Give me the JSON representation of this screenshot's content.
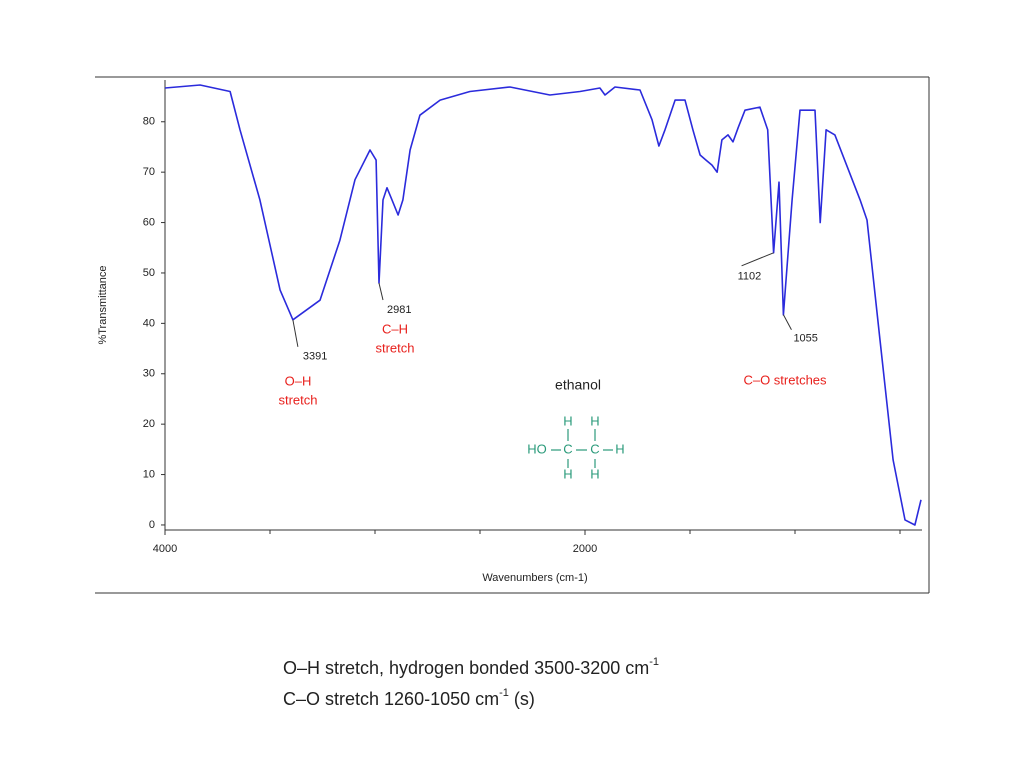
{
  "chart_data": {
    "type": "line",
    "x_label": "Wavenumbers (cm-1)",
    "y_label": "%Transmittance",
    "xlim": [
      4000,
      400
    ],
    "ylim": [
      -1,
      89
    ],
    "xticks": [
      4000,
      2000
    ],
    "xminorticks": [
      3500,
      3000,
      2500,
      1500,
      1000,
      500
    ],
    "yticks": [
      0,
      10,
      20,
      30,
      40,
      50,
      60,
      70,
      80
    ],
    "series": [
      {
        "color": "#2b2bdc",
        "x": [
          4000,
          3833,
          3690,
          3643,
          3548,
          3452,
          3391,
          3262,
          3167,
          3095,
          3024,
          2995,
          2981,
          2962,
          2943,
          2919,
          2890,
          2867,
          2833,
          2786,
          2690,
          2548,
          2357,
          2167,
          2024,
          1929,
          1905,
          1857,
          1738,
          1681,
          1648,
          1619,
          1571,
          1524,
          1486,
          1452,
          1424,
          1395,
          1371,
          1348,
          1319,
          1295,
          1271,
          1238,
          1167,
          1130,
          1102,
          1076,
          1055,
          1014,
          976,
          905,
          880,
          852,
          810,
          690,
          657,
          595,
          533,
          476,
          429,
          400
        ],
        "values": [
          86.7,
          87.3,
          86,
          78.4,
          64.5,
          46.6,
          40.7,
          44.6,
          56.5,
          68.5,
          74.4,
          72.4,
          48,
          64.5,
          66.9,
          64.5,
          61.5,
          64.5,
          74.4,
          81.3,
          84.3,
          86,
          86.9,
          85.3,
          86,
          86.7,
          85.3,
          86.9,
          86.3,
          80.4,
          75.2,
          78.4,
          84.3,
          84.3,
          78.4,
          73.4,
          72.4,
          71.4,
          70,
          76.4,
          77.4,
          76,
          78.8,
          82.3,
          82.9,
          78.4,
          54,
          68,
          41.7,
          64.5,
          82.3,
          82.3,
          60,
          78.4,
          77.4,
          64.5,
          60.5,
          36.7,
          12.9,
          1,
          0,
          5
        ]
      }
    ],
    "peak_labels": [
      {
        "label": "3391",
        "x": 3391,
        "y": 40.7
      },
      {
        "label": "2981",
        "x": 2981,
        "y": 48
      },
      {
        "label": "1102",
        "x": 1102,
        "y": 54
      },
      {
        "label": "1055",
        "x": 1055,
        "y": 41.7
      }
    ],
    "band_labels": [
      {
        "lines": [
          "O–H",
          "stretch"
        ]
      },
      {
        "lines": [
          "C–H",
          "stretch"
        ]
      },
      {
        "lines": [
          "C–O stretches"
        ]
      }
    ],
    "compound": "ethanol",
    "atoms": [
      "H",
      "H",
      "HO",
      "C",
      "C",
      "H",
      "H",
      "H"
    ]
  },
  "caption": [
    {
      "text": "O–H stretch, hydrogen bonded 3500-3200 cm",
      "sup": "-1",
      "after": ""
    },
    {
      "text": "C–O stretch 1260-1050 cm",
      "sup": "-1",
      "after": " (s)"
    }
  ]
}
